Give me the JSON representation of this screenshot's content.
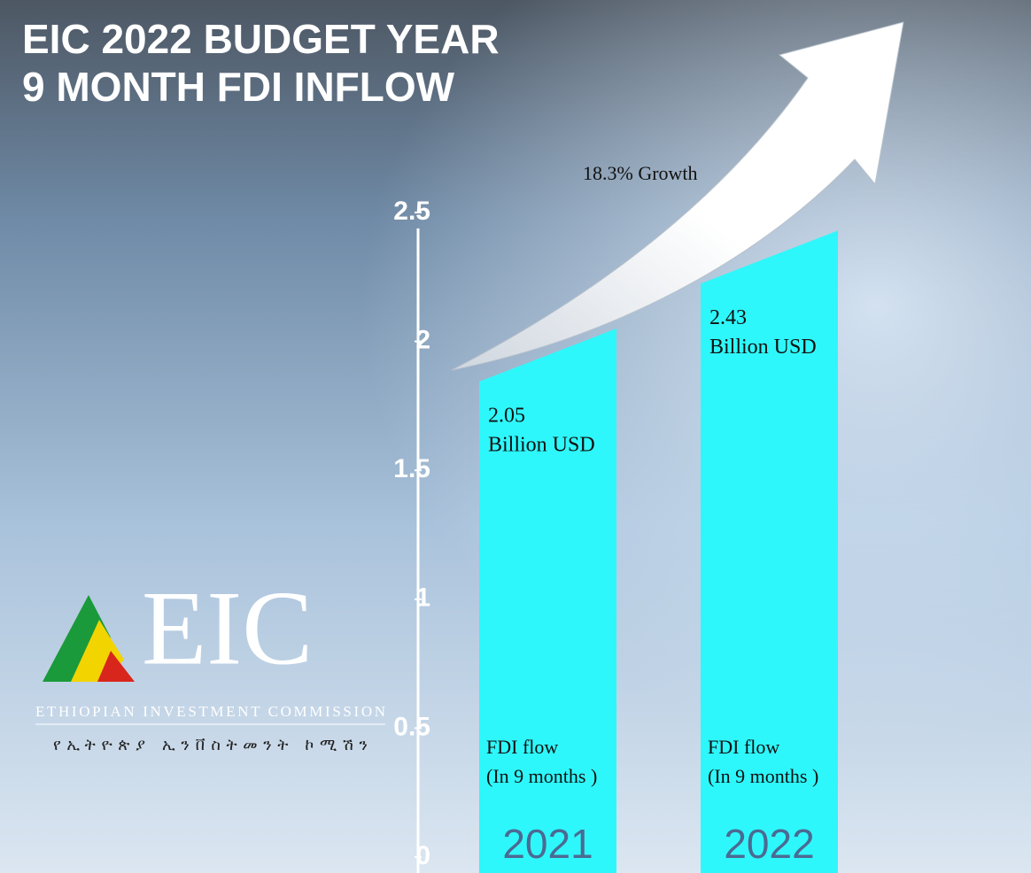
{
  "chart_data": {
    "type": "bar",
    "title": [
      "EIC 2022 BUDGET YEAR",
      "9 MONTH FDI INFLOW"
    ],
    "categories": [
      "2021",
      "2022"
    ],
    "values": [
      2.05,
      2.43
    ],
    "value_labels": [
      "2.05",
      "2.43"
    ],
    "unit": "Billion USD",
    "bar_note": [
      "FDI flow",
      "(In 9 months )"
    ],
    "annotation": "18.3% Growth",
    "color": "#2ef7fb",
    "ylim": [
      0,
      2.5
    ],
    "yticks": [
      0,
      0.5,
      1,
      1.5,
      2,
      2.5
    ],
    "grid": false
  },
  "logo": {
    "mark": "EIC",
    "name": "ETHIOPIAN INVESTMENT COMMISSION",
    "name_amharic": "የኢትዮጵያ ኢንቨስትመንት ኮሚሽን"
  }
}
